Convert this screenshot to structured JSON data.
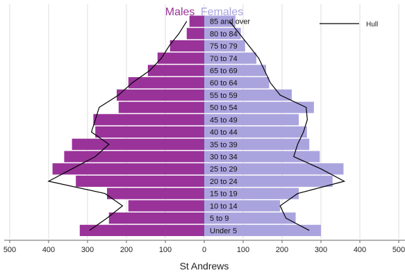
{
  "chart_data": {
    "type": "bar",
    "title_left": "Males",
    "title_right": "Females",
    "xlabel": "St Andrews",
    "xlim": [
      -500,
      500
    ],
    "x_ticks": [
      -500,
      -400,
      -300,
      -200,
      -100,
      0,
      100,
      200,
      300,
      400,
      500
    ],
    "x_tick_labels": [
      "500",
      "400",
      "300",
      "200",
      "100",
      "0",
      "100",
      "200",
      "300",
      "400",
      "500"
    ],
    "grid": true,
    "categories": [
      "Under 5",
      "5 to 9",
      "10 to 14",
      "15 to 19",
      "20 to 24",
      "25 to 29",
      "30 to 34",
      "35 to 39",
      "40 to 44",
      "45 to 49",
      "50 to 54",
      "55 to 59",
      "60 to 64",
      "65 to 69",
      "70 to 74",
      "75 to 79",
      "80 to 84",
      "85 and over"
    ],
    "series": [
      {
        "name": "Males",
        "values": [
          320,
          245,
          195,
          250,
          330,
          390,
          360,
          340,
          280,
          285,
          220,
          225,
          195,
          145,
          120,
          88,
          45,
          38
        ]
      },
      {
        "name": "Females",
        "values": [
          300,
          235,
          195,
          243,
          330,
          358,
          297,
          270,
          264,
          243,
          282,
          225,
          167,
          159,
          134,
          105,
          94,
          80
        ]
      }
    ],
    "overlay": {
      "name": "Hull",
      "males": [
        295,
        250,
        210,
        255,
        400,
        340,
        280,
        245,
        290,
        280,
        270,
        220,
        185,
        140,
        110,
        90,
        65,
        45
      ],
      "females": [
        270,
        210,
        195,
        240,
        360,
        300,
        230,
        240,
        255,
        265,
        262,
        195,
        170,
        155,
        140,
        115,
        90,
        65
      ]
    },
    "colors": {
      "males": "#993399",
      "females": "#aaa4de",
      "hull": "#000000",
      "grid": "#dddddd"
    },
    "legend_position": "top-right"
  }
}
